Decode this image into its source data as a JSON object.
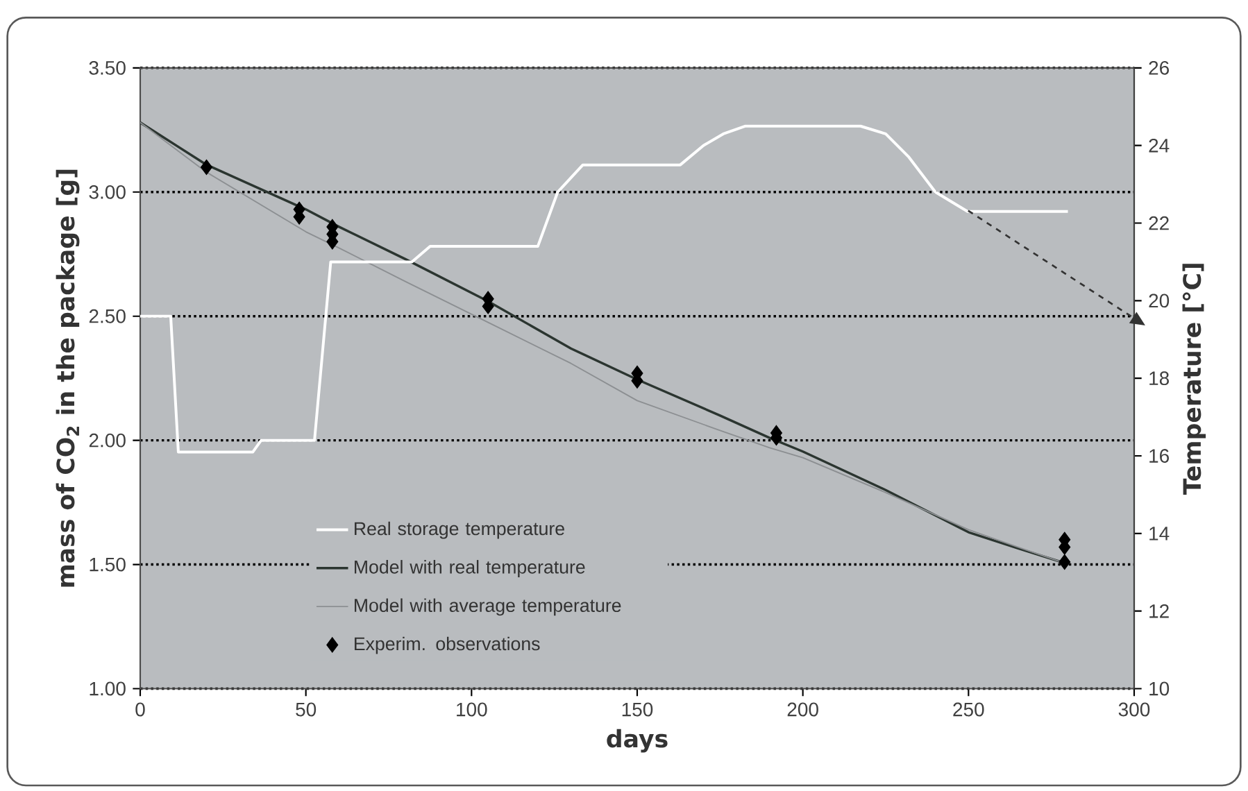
{
  "chart_data": {
    "type": "line",
    "xlabel": "days",
    "ylabel": "mass of CO$_{2}$ in the package [g]",
    "y2label": "Temperature [°C]",
    "xlim": [
      0,
      300
    ],
    "xticks": [
      0,
      50,
      100,
      150,
      200,
      250,
      300
    ],
    "ylim": [
      1,
      3.5
    ],
    "yticks": [
      {
        "value": 1,
        "label": "1.00"
      },
      {
        "value": 1.5,
        "label": "1.50"
      },
      {
        "value": 2,
        "label": "2.00"
      },
      {
        "value": 2.5,
        "label": "2.50"
      },
      {
        "value": 3,
        "label": "3.00"
      },
      {
        "value": 3.5,
        "label": "3.50"
      }
    ],
    "y2lim": [
      10,
      26
    ],
    "y2ticks": [
      10,
      12,
      14,
      16,
      18,
      20,
      22,
      24,
      26
    ],
    "grid": "y",
    "legend": "bottom left",
    "series": [
      {
        "name": "Real storage temperature",
        "axis": "y2",
        "color": "#ffffff",
        "x": [
          0,
          9.2,
          11.5,
          34,
          36.5,
          52.6,
          57.5,
          82,
          87.5,
          120,
          126,
          133.6,
          163,
          170,
          176,
          182.7,
          217.4,
          225,
          232,
          240,
          249.7,
          280
        ],
        "values": [
          19.6,
          19.6,
          16.1,
          16.1,
          16.4,
          16.4,
          21.0,
          21.0,
          21.4,
          21.4,
          22.8,
          23.5,
          23.5,
          24.0,
          24.3,
          24.5,
          24.5,
          24.3,
          23.7,
          22.8,
          22.3,
          22.3
        ]
      },
      {
        "name": "Model with real temperature",
        "color": "#2b3530",
        "x": [
          0,
          20,
          50,
          60,
          80,
          105,
          130,
          150,
          175,
          190,
          200,
          225,
          250,
          265,
          278
        ],
        "values": [
          3.28,
          3.11,
          2.93,
          2.86,
          2.73,
          2.56,
          2.37,
          2.245,
          2.1,
          2.01,
          1.955,
          1.8,
          1.63,
          1.565,
          1.51
        ]
      },
      {
        "name": "Model with average temperature",
        "color": "#8c8f92",
        "x": [
          0,
          20,
          50,
          60,
          80,
          105,
          130,
          150,
          175,
          190,
          200,
          225,
          250,
          265,
          278
        ],
        "values": [
          3.28,
          3.08,
          2.84,
          2.775,
          2.64,
          2.475,
          2.31,
          2.16,
          2.04,
          1.97,
          1.93,
          1.79,
          1.64,
          1.57,
          1.51
        ]
      },
      {
        "name": "Experim. observations",
        "type": "scatter",
        "marker": "diamond",
        "color": "#000000",
        "x": [
          20,
          48,
          48,
          58,
          58,
          58,
          105,
          105,
          150,
          150,
          192,
          192,
          279,
          279,
          279
        ],
        "values": [
          3.1,
          2.93,
          2.9,
          2.86,
          2.83,
          2.8,
          2.57,
          2.54,
          2.27,
          2.24,
          2.03,
          2.01,
          1.6,
          1.57,
          1.51
        ]
      }
    ]
  }
}
